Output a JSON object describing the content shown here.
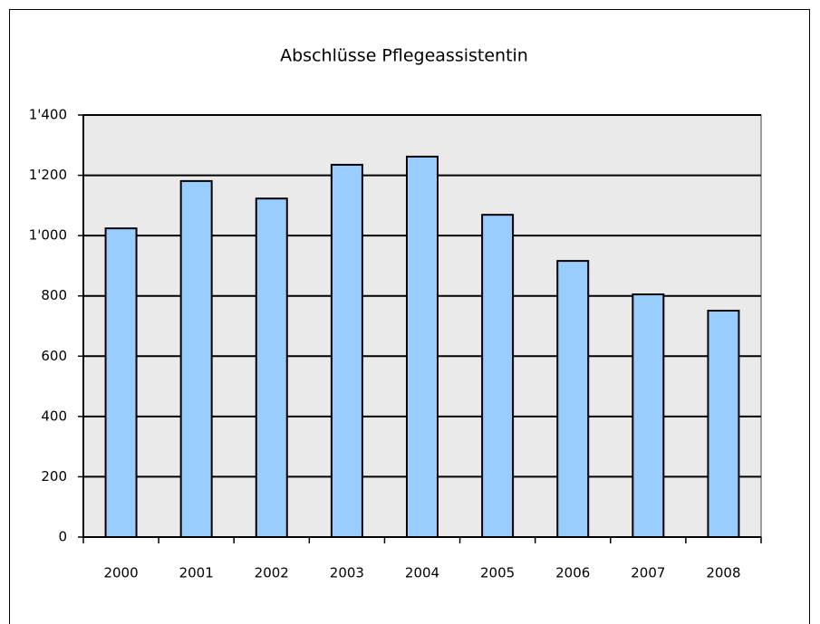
{
  "chart_data": {
    "type": "bar",
    "title": "Abschlüsse Pflegeassistentin",
    "categories": [
      "2000",
      "2001",
      "2002",
      "2003",
      "2004",
      "2005",
      "2006",
      "2007",
      "2008"
    ],
    "values": [
      1024,
      1181,
      1123,
      1235,
      1262,
      1069,
      916,
      805,
      751
    ],
    "color": "#99ccff",
    "ylim": [
      0,
      1400
    ],
    "yticks": [
      0,
      200,
      400,
      600,
      800,
      {
        "value": 1000,
        "label": "1'000"
      },
      {
        "value": 1200,
        "label": "1'200"
      },
      {
        "value": 1400,
        "label": "1'400"
      }
    ],
    "grid": true
  }
}
